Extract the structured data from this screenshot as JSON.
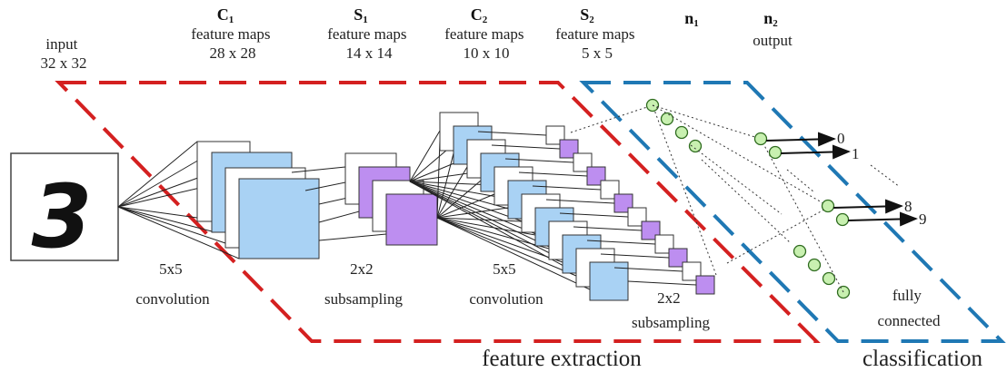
{
  "labels": {
    "input": [
      "input",
      "32 x 32"
    ],
    "c1": {
      "main": "C",
      "sub": "1",
      "lines": [
        "feature maps",
        "28 x 28"
      ]
    },
    "s1": {
      "main": "S",
      "sub": "1",
      "lines": [
        "feature maps",
        "14 x 14"
      ]
    },
    "c2": {
      "main": "C",
      "sub": "2",
      "lines": [
        "feature maps",
        "10 x 10"
      ]
    },
    "s2": {
      "main": "S",
      "sub": "2",
      "lines": [
        "feature maps",
        "5 x 5"
      ]
    },
    "n1": {
      "main": "n",
      "sub": "1"
    },
    "n2": {
      "main": "n",
      "sub": "2",
      "lines": [
        "output"
      ]
    }
  },
  "ops": {
    "conv1": [
      "5x5",
      "convolution"
    ],
    "sub1": [
      "2x2",
      "subsampling"
    ],
    "conv2": [
      "5x5",
      "convolution"
    ],
    "sub2": [
      "2x2",
      "subsampling"
    ],
    "fc": [
      "fully",
      "connected"
    ]
  },
  "regions": {
    "feature_extraction": "feature extraction",
    "classification": "classification"
  },
  "input_digit": "3",
  "outputs": [
    "0",
    "1",
    "8",
    "9"
  ],
  "colors": {
    "feature_extraction_border": "#d42020",
    "classification_border": "#1f78b4",
    "conv_map": "#a9d2f4",
    "pool_map": "#bd8ef0",
    "neuron": "#c8f0b0",
    "neuron_stroke": "#2e6b1e",
    "line": "#222222"
  }
}
